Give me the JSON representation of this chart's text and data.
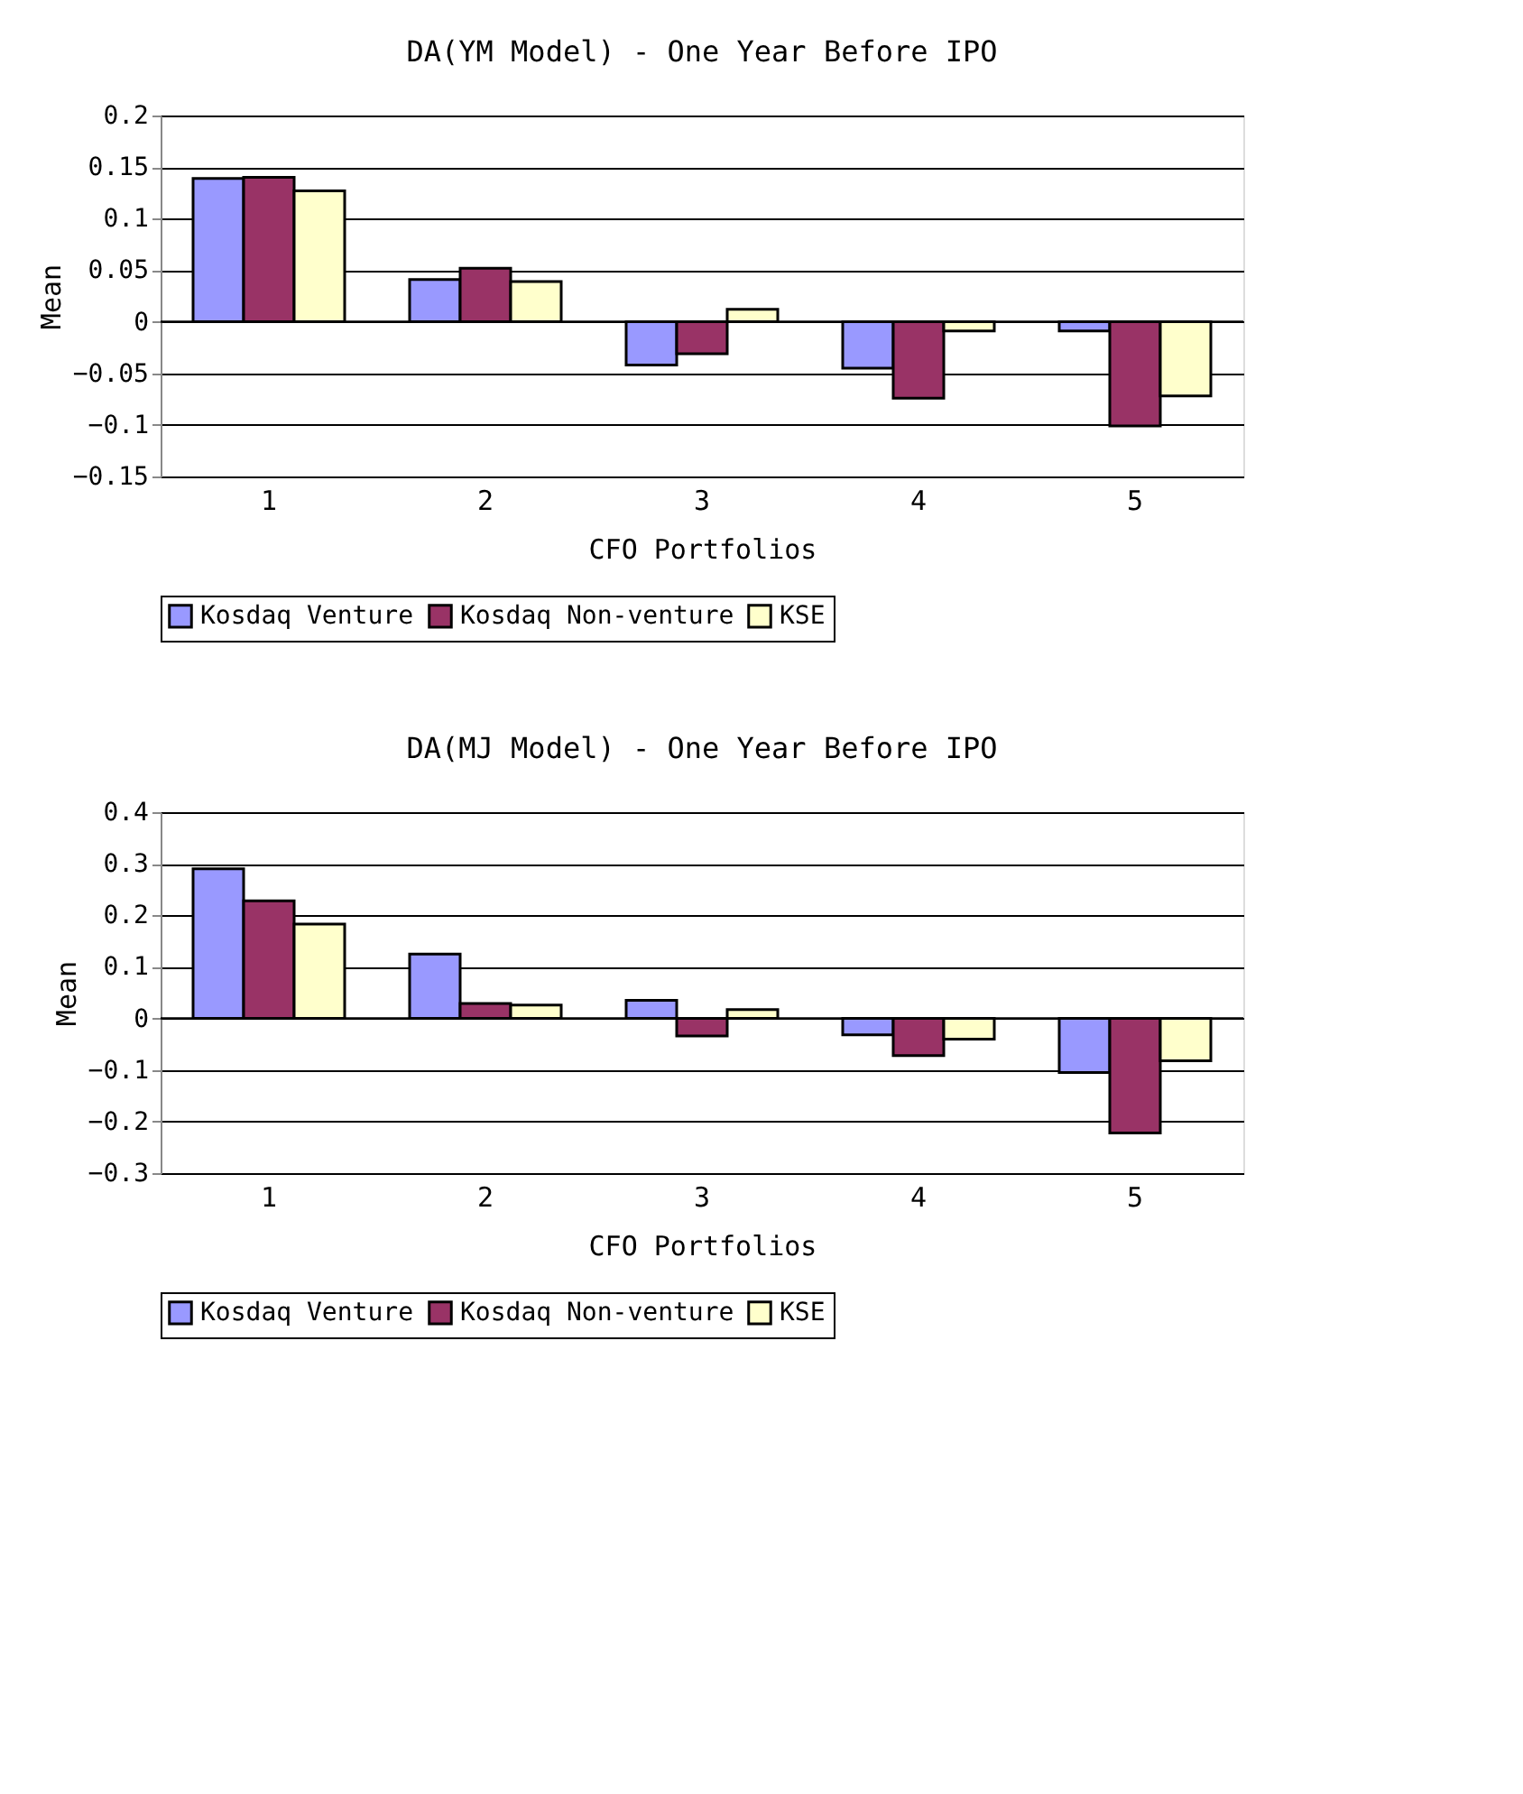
{
  "chart_data": [
    {
      "type": "bar",
      "title": "DA(YM Model) - One Year Before IPO",
      "xlabel": "CFO Portfolios",
      "ylabel": "Mean",
      "categories": [
        "1",
        "2",
        "3",
        "4",
        "5"
      ],
      "series": [
        {
          "name": "Kosdaq Venture",
          "color": "#9999ff",
          "values": [
            0.139,
            0.041,
            -0.042,
            -0.045,
            -0.009
          ]
        },
        {
          "name": "Kosdaq Non-venture",
          "color": "#993366",
          "values": [
            0.14,
            0.052,
            -0.031,
            -0.074,
            -0.101
          ]
        },
        {
          "name": "KSE",
          "color": "#ffffcc",
          "values": [
            0.127,
            0.039,
            0.012,
            -0.009,
            -0.072
          ]
        }
      ],
      "ylim": [
        -0.15,
        0.2
      ],
      "yticks": [
        -0.15,
        -0.1,
        -0.05,
        0,
        0.05,
        0.1,
        0.15,
        0.2
      ],
      "grid": "y",
      "legend": "bottom"
    },
    {
      "type": "bar",
      "title": "DA(MJ Model) - One Year Before IPO",
      "xlabel": "CFO Portfolios",
      "ylabel": "Mean",
      "categories": [
        "1",
        "2",
        "3",
        "4",
        "5"
      ],
      "series": [
        {
          "name": "Kosdaq Venture",
          "color": "#9999ff",
          "values": [
            0.29,
            0.125,
            0.035,
            -0.032,
            -0.105
          ]
        },
        {
          "name": "Kosdaq Non-venture",
          "color": "#993366",
          "values": [
            0.228,
            0.029,
            -0.034,
            -0.072,
            -0.222
          ]
        },
        {
          "name": "KSE",
          "color": "#ffffcc",
          "values": [
            0.183,
            0.026,
            0.017,
            -0.04,
            -0.082
          ]
        }
      ],
      "ylim": [
        -0.3,
        0.4
      ],
      "yticks": [
        -0.3,
        -0.2,
        -0.1,
        0,
        0.1,
        0.2,
        0.3,
        0.4
      ],
      "grid": "y",
      "legend": "bottom"
    }
  ]
}
